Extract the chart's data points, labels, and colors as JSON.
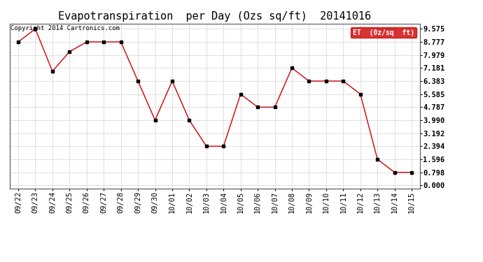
{
  "title": "Evapotranspiration  per Day (Ozs sq/ft)  20141016",
  "copyright_text": "Copyright 2014 Cartronics.com",
  "legend_label": "ET  (0z/sq  ft)",
  "x_labels": [
    "09/22",
    "09/23",
    "09/24",
    "09/25",
    "09/26",
    "09/27",
    "09/28",
    "09/29",
    "09/30",
    "10/01",
    "10/02",
    "10/03",
    "10/04",
    "10/05",
    "10/06",
    "10/07",
    "10/08",
    "10/09",
    "10/10",
    "10/11",
    "10/12",
    "10/13",
    "10/14",
    "10/15"
  ],
  "y_values": [
    8.777,
    9.575,
    6.981,
    8.18,
    8.777,
    8.777,
    8.777,
    6.383,
    3.99,
    6.383,
    3.99,
    2.394,
    2.394,
    5.585,
    4.787,
    4.787,
    7.181,
    6.383,
    6.383,
    6.383,
    5.585,
    1.596,
    0.798,
    0.798
  ],
  "y_ticks": [
    0.0,
    0.798,
    1.596,
    2.394,
    3.192,
    3.99,
    4.787,
    5.585,
    6.383,
    7.181,
    7.979,
    8.777,
    9.575
  ],
  "line_color": "#cc0000",
  "marker_color": "#000000",
  "bg_color": "#ffffff",
  "grid_color": "#bbbbbb",
  "legend_bg": "#cc0000",
  "legend_text_color": "#ffffff",
  "title_fontsize": 11,
  "tick_fontsize": 7.5,
  "copyright_fontsize": 6.5
}
